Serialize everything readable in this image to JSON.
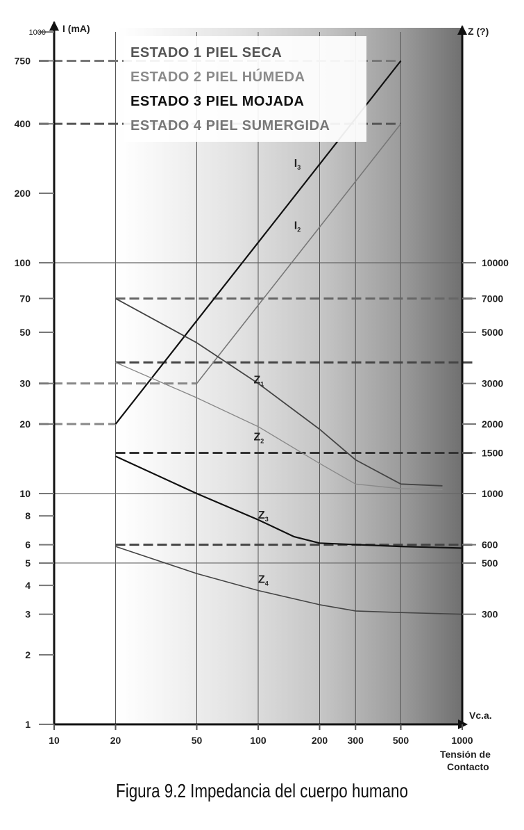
{
  "caption": "Figura 9.2  Impedancia del cuerpo humano",
  "chart_data": {
    "type": "line",
    "title": "",
    "xlabel": "Vc.a.",
    "xlabel_sub1": "Tensión de",
    "xlabel_sub2": "Contacto",
    "ylabel_left": "I (mA)",
    "ylabel_right": "Z (?)",
    "x_scale": "log",
    "y_scale": "log",
    "xlim": [
      10,
      1000
    ],
    "ylim_left": [
      1,
      1000
    ],
    "x_ticks": [
      10,
      20,
      50,
      100,
      200,
      300,
      500,
      1000
    ],
    "x_tick_labels": [
      "10",
      "20",
      "50",
      "100",
      "200",
      "300",
      "500",
      "1000"
    ],
    "y_left_ticks": [
      1,
      2,
      3,
      4,
      5,
      6,
      8,
      10,
      20,
      30,
      50,
      70,
      100,
      200,
      400,
      750,
      1000
    ],
    "y_left_tick_labels": [
      "1",
      "2",
      "3",
      "4",
      "5",
      "6",
      "8",
      "10",
      "20",
      "30",
      "50",
      "70",
      "100",
      "200",
      "400",
      "750",
      "1000"
    ],
    "y_right_ticks": [
      300,
      500,
      600,
      1000,
      1500,
      2000,
      3000,
      5000,
      7000,
      10000
    ],
    "y_right_tick_labels": [
      "300",
      "500",
      "600",
      "1000",
      "1500",
      "2000",
      "3000",
      "5000",
      "7000",
      "10000"
    ],
    "right_axis_factor": 100,
    "legend": [
      {
        "label": "ESTADO 1  PIEL SECA",
        "color": "#555555"
      },
      {
        "label": "ESTADO 2  PIEL HÚMEDA",
        "color": "#8a8a8a"
      },
      {
        "label": "ESTADO 3  PIEL MOJADA",
        "color": "#111111"
      },
      {
        "label": "ESTADO 4  PIEL SUMERGIDA",
        "color": "#777777"
      }
    ],
    "series": [
      {
        "name": "I",
        "sub": "3",
        "axis": "left",
        "color": "#111111",
        "width": 2.2,
        "points": [
          [
            20,
            20
          ],
          [
            500,
            750
          ]
        ],
        "label_at": [
          150,
          260
        ]
      },
      {
        "name": "I",
        "sub": "2",
        "axis": "left",
        "color": "#777777",
        "width": 1.6,
        "points": [
          [
            50,
            30
          ],
          [
            500,
            400
          ]
        ],
        "label_at": [
          150,
          140
        ]
      },
      {
        "name": "Z",
        "sub": "1",
        "axis": "right",
        "color": "#444444",
        "width": 1.8,
        "points": [
          [
            20,
            7000
          ],
          [
            50,
            4500
          ],
          [
            100,
            3000
          ],
          [
            200,
            1900
          ],
          [
            300,
            1400
          ],
          [
            500,
            1100
          ],
          [
            800,
            1080
          ]
        ],
        "label_at": [
          95,
          3000
        ]
      },
      {
        "name": "Z",
        "sub": "2",
        "axis": "right",
        "color": "#8a8a8a",
        "width": 1.4,
        "points": [
          [
            20,
            3700
          ],
          [
            50,
            2600
          ],
          [
            100,
            1950
          ],
          [
            200,
            1350
          ],
          [
            300,
            1100
          ],
          [
            500,
            1050
          ],
          [
            800,
            1040
          ]
        ],
        "label_at": [
          95,
          1700
        ]
      },
      {
        "name": "Z",
        "sub": "3",
        "axis": "right",
        "color": "#111111",
        "width": 2.2,
        "points": [
          [
            20,
            1450
          ],
          [
            50,
            1000
          ],
          [
            100,
            770
          ],
          [
            150,
            650
          ],
          [
            200,
            610
          ],
          [
            500,
            590
          ],
          [
            1000,
            580
          ]
        ],
        "label_at": [
          100,
          780
        ]
      },
      {
        "name": "Z",
        "sub": "4",
        "axis": "right",
        "color": "#444444",
        "width": 1.6,
        "points": [
          [
            20,
            590
          ],
          [
            50,
            450
          ],
          [
            100,
            380
          ],
          [
            200,
            330
          ],
          [
            300,
            310
          ],
          [
            500,
            305
          ],
          [
            1000,
            300
          ]
        ],
        "label_at": [
          100,
          410
        ]
      }
    ],
    "reference_lines": [
      {
        "value": 750,
        "axis": "left",
        "x_to": 500,
        "style": "dashed",
        "color": "#777777"
      },
      {
        "value": 400,
        "axis": "left",
        "x_to": 500,
        "style": "dashed",
        "color": "#555555"
      },
      {
        "value": 30,
        "axis": "left",
        "x_to": 50,
        "style": "dashed",
        "color": "#888888"
      },
      {
        "value": 20,
        "axis": "left",
        "x_to": 20,
        "style": "dashed",
        "color": "#888888"
      },
      {
        "value": 7000,
        "axis": "right",
        "x_from": 20,
        "style": "dashed",
        "color": "#666666"
      },
      {
        "value": 3700,
        "axis": "right",
        "x_from": 20,
        "style": "dashed",
        "color": "#444444"
      },
      {
        "value": 1500,
        "axis": "right",
        "x_from": 20,
        "style": "dashed",
        "color": "#333333"
      },
      {
        "value": 600,
        "axis": "right",
        "x_from": 20,
        "style": "dashed",
        "color": "#444444"
      }
    ],
    "grid_h": [
      100,
      10,
      5
    ],
    "grid_v": [
      20,
      50,
      100,
      200,
      300,
      500
    ],
    "grid": true
  }
}
